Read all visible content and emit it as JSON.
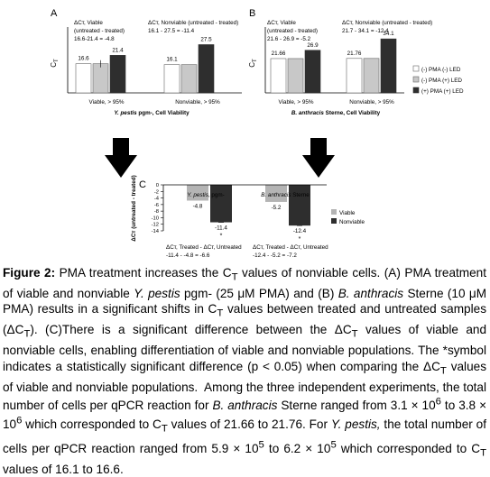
{
  "colors": {
    "white_bar": "#ffffff",
    "light_bar": "#c8c8c8",
    "mid_bar": "#b4b4b4",
    "dark_bar": "#2e2e2e",
    "arrow": "#000000"
  },
  "chart_data": [
    {
      "panel": "A",
      "type": "bar",
      "ylabel": "C_T",
      "ylim": [
        0,
        35
      ],
      "categories": [
        "Viable, > 95%",
        "Nonviable, > 95%"
      ],
      "xlabel_italic": "Y. pestis",
      "xlabel_rest": " pgm-, Cell Viability",
      "series": [
        {
          "name": "(-) PMA (-) LED",
          "values": [
            16.6,
            16.1
          ]
        },
        {
          "name": "(-) PMA (+) LED",
          "values": [
            16.6,
            16.1
          ]
        },
        {
          "name": "(+) PMA (+) LED",
          "values": [
            21.4,
            27.5
          ]
        }
      ],
      "bar_labels": [
        [
          "16.6",
          "",
          "21.4"
        ],
        [
          "16.1",
          "",
          "27.5"
        ]
      ],
      "annotations": [
        [
          "ΔCт, Viable",
          "(untreated - treated)",
          "16.6-21.4 = -4.8"
        ],
        [
          "ΔCт, Nonviable (untreated - treated)",
          "16.1 - 27.5 = -11.4"
        ]
      ]
    },
    {
      "panel": "B",
      "type": "bar",
      "ylabel": "C_T",
      "ylim": [
        0,
        35
      ],
      "categories": [
        "Viable, > 95%",
        "Nonviable, > 95%"
      ],
      "xlabel_italic": "B. anthracis",
      "xlabel_rest": " Sterne, Cell Viability",
      "series": [
        {
          "name": "(-) PMA (-) LED",
          "values": [
            21.66,
            21.76
          ]
        },
        {
          "name": "(-) PMA (+) LED",
          "values": [
            21.66,
            21.76
          ]
        },
        {
          "name": "(+) PMA (+) LED",
          "values": [
            26.9,
            34.1
          ]
        }
      ],
      "bar_labels": [
        [
          "21.66",
          "",
          "26.9"
        ],
        [
          "21.76",
          "",
          "34.1"
        ]
      ],
      "annotations": [
        [
          "ΔCт, Viable",
          "(untreated - treated)",
          "21.6 - 26.9 = -5.2"
        ],
        [
          "ΔCт, Nonviable (untreated - treated)",
          "21.7 - 34.1 = -12.4"
        ]
      ],
      "legend": [
        "(-) PMA  (-) LED",
        "(-) PMA  (+) LED",
        "(+) PMA  (+) LED"
      ]
    },
    {
      "panel": "C",
      "type": "bar",
      "ylabel": "ΔCт (untreated - treated)",
      "ylim": [
        -14,
        0
      ],
      "yticks": [
        "0",
        "-2",
        "-4",
        "-6",
        "-8",
        "-10",
        "-12",
        "-14"
      ],
      "categories_italic": [
        "Y. pestis",
        "B. anthracis"
      ],
      "categories_rest": [
        ", pgm-",
        " Sterne"
      ],
      "series": [
        {
          "name": "Viable",
          "values": [
            -4.8,
            -5.2
          ]
        },
        {
          "name": "Nonviable",
          "values": [
            -11.4,
            -12.4
          ]
        }
      ],
      "bar_labels": [
        [
          "-4.8",
          "-11.4"
        ],
        [
          "-5.2",
          "-12.4"
        ]
      ],
      "significance": [
        "*",
        "*"
      ],
      "annotations": [
        [
          "ΔCт, Treated - ΔCт, Untreated",
          "-11.4 - -4.8 = -6.6"
        ],
        [
          "ΔCт, Treated - ΔCт, Untreated",
          "-12.4 - -5.2 = -7.2"
        ]
      ]
    }
  ],
  "caption": {
    "label": "Figure 2:",
    "html": " PMA treatment increases the C<sub>T</sub> values of nonviable cells. (A) PMA treatment of viable and nonviable <i>Y. pestis</i> pgm- (25 μM PMA) and (B) <i>B. anthracis</i> Sterne (10 μM PMA) results in a significant shifts in C<sub>T</sub> values between treated and untreated samples (ΔC<sub>T</sub>). (C)There is a significant difference between the ΔC<sub>T</sub> values of viable and nonviable cells, enabling differentiation of viable and nonviable populations. The *symbol indicates a statistically significant difference (p &lt; 0.05) when comparing the ΔC<sub>T</sub> values of viable and nonviable populations.&nbsp; Among the three independent experiments, the total number of cells per qPCR reaction for <i>B. anthracis</i> Sterne ranged from 3.1 × 10<sup>6</sup> to 3.8 × 10<sup>6</sup> which corresponded to C<sub>T</sub> values of 21.66 to 21.76. For <i>Y. pestis,</i> the total number of cells per qPCR reaction ranged from 5.9 × 10<sup>5</sup> to 6.2 × 10<sup>5</sup> which corresponded to C<sub>T</sub> values of 16.1 to 16.6."
  }
}
